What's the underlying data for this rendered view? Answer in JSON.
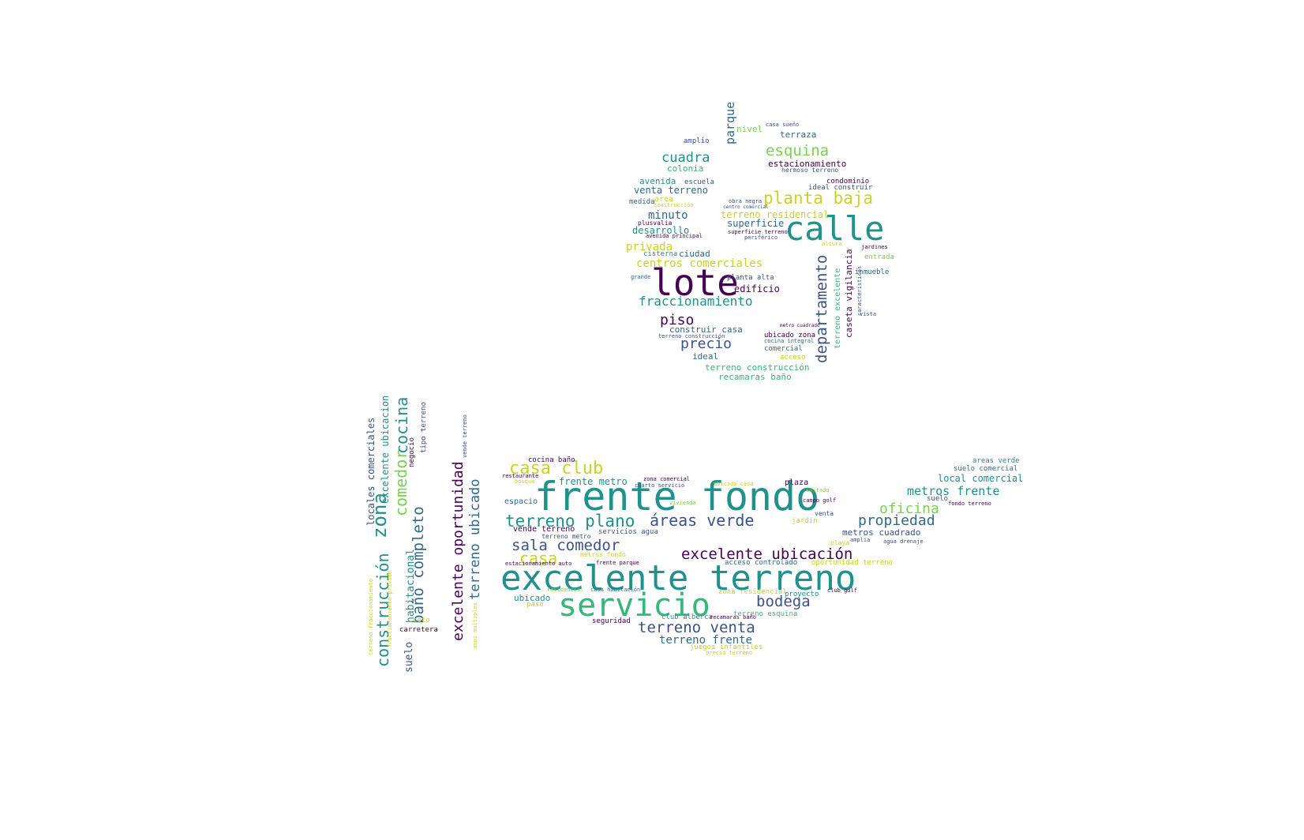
{
  "palette": {
    "dark_purple": "#440154",
    "indigo": "#3b528b",
    "blue": "#31688e",
    "teal": "#21918c",
    "green": "#35b779",
    "light_green": "#7ad151",
    "yellow": "#c8d41e"
  },
  "words": [
    {
      "text": "lote",
      "color": "#440154"
    },
    {
      "text": "calle",
      "color": "#21918c"
    },
    {
      "text": "planta baja",
      "color": "#c8d41e"
    },
    {
      "text": "esquina",
      "color": "#7ad151"
    },
    {
      "text": "cuadra",
      "color": "#21918c"
    },
    {
      "text": "parque",
      "color": "#31688e"
    },
    {
      "text": "nivel",
      "color": "#7ad151"
    },
    {
      "text": "terraza",
      "color": "#31688e"
    },
    {
      "text": "amplio",
      "color": "#3b528b"
    },
    {
      "text": "casa sueño",
      "color": "#3b528b"
    },
    {
      "text": "estacionamiento",
      "color": "#440154"
    },
    {
      "text": "hermoso terreno",
      "color": "#3b528b"
    },
    {
      "text": "colonia",
      "color": "#35b779"
    },
    {
      "text": "avenida",
      "color": "#21918c"
    },
    {
      "text": "escuela",
      "color": "#3b528b"
    },
    {
      "text": "condominio",
      "color": "#440154"
    },
    {
      "text": "ideal construir",
      "color": "#3b528b"
    },
    {
      "text": "venta terreno",
      "color": "#31688e"
    },
    {
      "text": "area",
      "color": "#c8d41e"
    },
    {
      "text": "medida",
      "color": "#31688e"
    },
    {
      "text": "construcción",
      "color": "#c8d41e"
    },
    {
      "text": "obra negra",
      "color": "#3b528b"
    },
    {
      "text": "centro comercial",
      "color": "#3b528b"
    },
    {
      "text": "minuto",
      "color": "#31688e"
    },
    {
      "text": "terreno residencial",
      "color": "#c8d41e"
    },
    {
      "text": "plusvalia",
      "color": "#440154"
    },
    {
      "text": "superficie",
      "color": "#31688e"
    },
    {
      "text": "desarrollo",
      "color": "#21918c"
    },
    {
      "text": "superficie terreno",
      "color": "#440154"
    },
    {
      "text": "avenida principal",
      "color": "#440154"
    },
    {
      "text": "periférico",
      "color": "#3b528b"
    },
    {
      "text": "privada",
      "color": "#c8d41e"
    },
    {
      "text": "cisterna",
      "color": "#21918c"
    },
    {
      "text": "ciudad",
      "color": "#31688e"
    },
    {
      "text": "centros comerciales",
      "color": "#c8d41e"
    },
    {
      "text": "planta alta",
      "color": "#3b528b"
    },
    {
      "text": "grande",
      "color": "#31688e"
    },
    {
      "text": "edificio",
      "color": "#440154"
    },
    {
      "text": "fraccionamiento",
      "color": "#21918c"
    },
    {
      "text": "piso",
      "color": "#440154"
    },
    {
      "text": "construir casa",
      "color": "#31688e"
    },
    {
      "text": "terreno construcción",
      "color": "#3b528b"
    },
    {
      "text": "precio",
      "color": "#3b528b"
    },
    {
      "text": "ideal",
      "color": "#31688e"
    },
    {
      "text": "ubicado zona",
      "color": "#440154"
    },
    {
      "text": "cocina integral",
      "color": "#31688e"
    },
    {
      "text": "comercial",
      "color": "#31688e"
    },
    {
      "text": "acceso",
      "color": "#c8d41e"
    },
    {
      "text": "terreno construcción",
      "color": "#35b779"
    },
    {
      "text": "recamaras baño",
      "color": "#35b779"
    },
    {
      "text": "departamento",
      "color": "#3b528b"
    },
    {
      "text": "terreno excelente",
      "color": "#35b779"
    },
    {
      "text": "caseta vigilancia",
      "color": "#440154"
    },
    {
      "text": "altura",
      "color": "#c8d41e"
    },
    {
      "text": "jardines",
      "color": "#440154"
    },
    {
      "text": "entrada",
      "color": "#7ad151"
    },
    {
      "text": "inmueble",
      "color": "#31688e"
    },
    {
      "text": "características",
      "color": "#3b528b"
    },
    {
      "text": "vista",
      "color": "#3b528b"
    },
    {
      "text": "metro cuadrado",
      "color": "#440154"
    },
    {
      "text": "frente fondo",
      "color": "#21918c"
    },
    {
      "text": "excelente terreno",
      "color": "#21918c"
    },
    {
      "text": "servicio",
      "color": "#35b779"
    },
    {
      "text": "casa club",
      "color": "#c8d41e"
    },
    {
      "text": "cocina baño",
      "color": "#440154"
    },
    {
      "text": "restaurante",
      "color": "#440154"
    },
    {
      "text": "bosque",
      "color": "#c8d41e"
    },
    {
      "text": "frente metro",
      "color": "#21918c"
    },
    {
      "text": "zona comercial",
      "color": "#440154"
    },
    {
      "text": "cuarto servicio",
      "color": "#3b528b"
    },
    {
      "text": "ubicado casa",
      "color": "#c8d41e"
    },
    {
      "text": "plaza",
      "color": "#440154"
    },
    {
      "text": "costado",
      "color": "#7ad151"
    },
    {
      "text": "espacio",
      "color": "#31688e"
    },
    {
      "text": "vivienda",
      "color": "#7ad151"
    },
    {
      "text": "campo golf",
      "color": "#440154"
    },
    {
      "text": "terreno plano",
      "color": "#21918c"
    },
    {
      "text": "áreas verde",
      "color": "#3b528b"
    },
    {
      "text": "venta",
      "color": "#3b528b"
    },
    {
      "text": "oficina",
      "color": "#7ad151"
    },
    {
      "text": "metros frente",
      "color": "#21918c"
    },
    {
      "text": "local comercial",
      "color": "#21918c"
    },
    {
      "text": "suelo comercial",
      "color": "#31688e"
    },
    {
      "text": "areas verde",
      "color": "#21918c"
    },
    {
      "text": "suelo",
      "color": "#3b528b"
    },
    {
      "text": "fondo terreno",
      "color": "#440154"
    },
    {
      "text": "propiedad",
      "color": "#31688e"
    },
    {
      "text": "jardín",
      "color": "#c8d41e"
    },
    {
      "text": "sala comedor",
      "color": "#3b528b"
    },
    {
      "text": "vende terreno",
      "color": "#440154"
    },
    {
      "text": "servicios agua",
      "color": "#3b528b"
    },
    {
      "text": "terreno metro",
      "color": "#3b528b"
    },
    {
      "text": "metros cuadrado",
      "color": "#3b528b"
    },
    {
      "text": "amplia",
      "color": "#3b528b"
    },
    {
      "text": "agua drenaje",
      "color": "#3b528b"
    },
    {
      "text": "casa",
      "color": "#c8d41e"
    },
    {
      "text": "metros fondo",
      "color": "#c8d41e"
    },
    {
      "text": "excelente ubicación",
      "color": "#440154"
    },
    {
      "text": "playa",
      "color": "#c8d41e"
    },
    {
      "text": "frente parque",
      "color": "#440154"
    },
    {
      "text": "estacionamiento auto",
      "color": "#440154"
    },
    {
      "text": "acceso controlado",
      "color": "#31688e"
    },
    {
      "text": "oportunidad terreno",
      "color": "#c8d41e"
    },
    {
      "text": "bodega",
      "color": "#3b528b"
    },
    {
      "text": "ubicado",
      "color": "#21918c"
    },
    {
      "text": "paso",
      "color": "#c8d41e"
    },
    {
      "text": "residencial",
      "color": "#7ad151"
    },
    {
      "text": "casa habitación",
      "color": "#31688e"
    },
    {
      "text": "zona residencial",
      "color": "#c8d41e"
    },
    {
      "text": "proyecto",
      "color": "#21918c"
    },
    {
      "text": "club golf",
      "color": "#440154"
    },
    {
      "text": "terreno esquina",
      "color": "#35b779"
    },
    {
      "text": "seguridad",
      "color": "#440154"
    },
    {
      "text": "terreno venta",
      "color": "#3b528b"
    },
    {
      "text": "club alberca",
      "color": "#21918c"
    },
    {
      "text": "recamaras baño",
      "color": "#440154"
    },
    {
      "text": "terreno frente",
      "color": "#31688e"
    },
    {
      "text": "juegos infantiles",
      "color": "#c8d41e"
    },
    {
      "text": "precio terreno",
      "color": "#c8d41e"
    },
    {
      "text": "zona",
      "color": "#21918c"
    },
    {
      "text": "construcción",
      "color": "#21918c"
    },
    {
      "text": "comedor",
      "color": "#7ad151"
    },
    {
      "text": "cocina",
      "color": "#21918c"
    },
    {
      "text": "excelente ubicacion",
      "color": "#21918c"
    },
    {
      "text": "locales comerciales",
      "color": "#3b528b"
    },
    {
      "text": "baño completo",
      "color": "#31688e"
    },
    {
      "text": "habitacional",
      "color": "#21918c"
    },
    {
      "text": "suelo",
      "color": "#3b528b"
    },
    {
      "text": "negocio",
      "color": "#440154"
    },
    {
      "text": "tipo terreno",
      "color": "#3b528b"
    },
    {
      "text": "coto",
      "color": "#c8d41e"
    },
    {
      "text": "carretera",
      "color": "#440154"
    },
    {
      "text": "terreno fraccionamiento",
      "color": "#c8d41e"
    },
    {
      "text": "fraccionamiento privado",
      "color": "#c8d41e"
    },
    {
      "text": "excelente oportunidad",
      "color": "#440154"
    },
    {
      "text": "terreno ubicado",
      "color": "#31688e"
    },
    {
      "text": "vende terreno",
      "color": "#3b528b"
    },
    {
      "text": "usos multiples",
      "color": "#c8d41e"
    }
  ]
}
